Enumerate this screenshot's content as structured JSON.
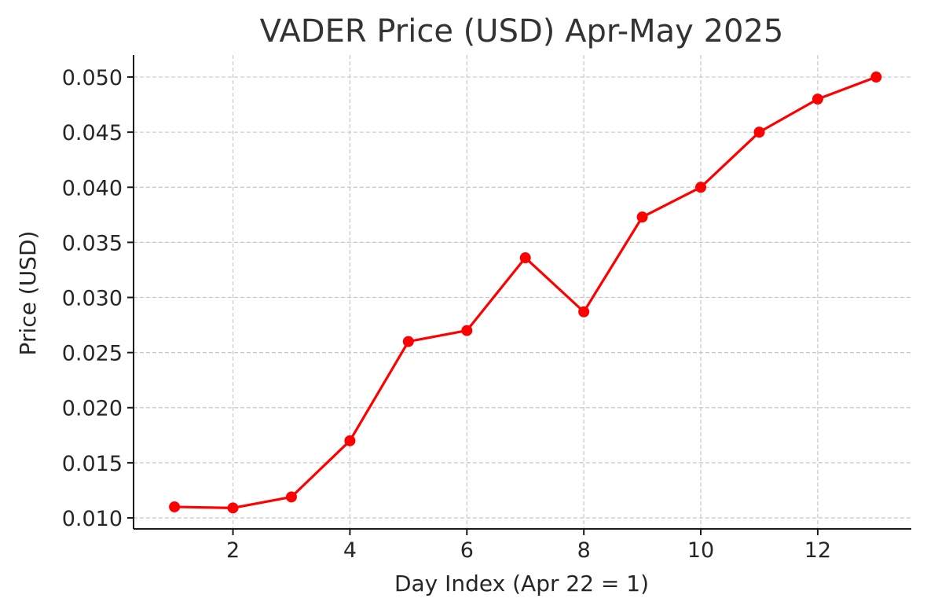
{
  "chart_data": {
    "type": "line",
    "title": "VADER Price (USD) Apr-May 2025",
    "xlabel": "Day Index (Apr 22 = 1)",
    "ylabel": "Price (USD)",
    "xlim": [
      0.3,
      13.6
    ],
    "ylim": [
      0.009,
      0.052
    ],
    "x_ticks": [
      2,
      4,
      6,
      8,
      10,
      12
    ],
    "x_tick_labels": [
      "2",
      "4",
      "6",
      "8",
      "10",
      "12"
    ],
    "y_ticks": [
      0.01,
      0.015,
      0.02,
      0.025,
      0.03,
      0.035,
      0.04,
      0.045,
      0.05
    ],
    "y_tick_labels": [
      "0.010",
      "0.015",
      "0.020",
      "0.025",
      "0.030",
      "0.035",
      "0.040",
      "0.045",
      "0.050"
    ],
    "grid": true,
    "series": [
      {
        "color": "#ff0000",
        "marker": "circle",
        "x": [
          1,
          2,
          3,
          4,
          5,
          6,
          7,
          8,
          9,
          10,
          11,
          12,
          13
        ],
        "values": [
          0.011,
          0.0109,
          0.0119,
          0.017,
          0.026,
          0.027,
          0.0336,
          0.0287,
          0.0373,
          0.04,
          0.045,
          0.048,
          0.05
        ]
      }
    ]
  }
}
